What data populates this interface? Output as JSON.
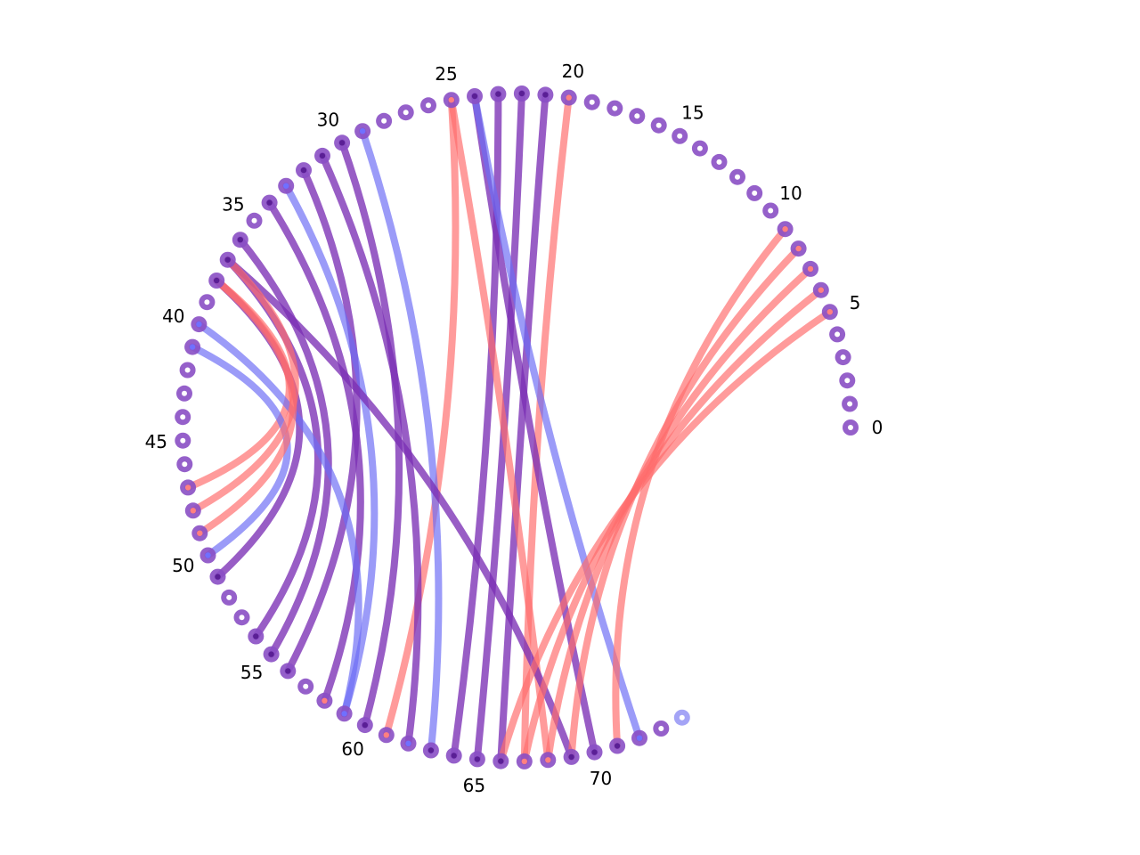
{
  "diagram": {
    "type": "arc-diagram",
    "node_count": 75,
    "tick_labels": [
      "0",
      "5",
      "10",
      "15",
      "20",
      "25",
      "30",
      "35",
      "40",
      "45",
      "50",
      "55",
      "60",
      "65",
      "70"
    ],
    "tick_step": 5,
    "colors": {
      "red": "#ff6b6b",
      "blue": "#6b6bf5",
      "purple": "#7b2fb5",
      "node_ring": "#8a4fc4",
      "node_center": "#ffffff",
      "last_node_ring": "#9a9af5"
    },
    "node_marks": {
      "red": [
        5,
        6,
        7,
        8,
        9,
        20,
        25,
        47,
        48,
        49,
        58,
        61,
        67,
        68
      ],
      "blue": [
        29,
        33,
        40,
        41,
        50,
        59,
        62,
        72
      ],
      "purple": [
        21,
        22,
        23,
        24,
        30,
        31,
        32,
        34,
        36,
        37,
        38,
        51,
        54,
        55,
        56,
        60,
        63,
        64,
        65,
        66,
        69,
        70,
        71
      ],
      "faded_last": [
        74
      ]
    },
    "chords": [
      {
        "from": 20,
        "to": 67,
        "color": "red"
      },
      {
        "from": 21,
        "to": 66,
        "color": "purple"
      },
      {
        "from": 22,
        "to": 65,
        "color": "purple"
      },
      {
        "from": 23,
        "to": 64,
        "color": "purple"
      },
      {
        "from": 24,
        "to": 70,
        "color": "purple"
      },
      {
        "from": 25,
        "to": 68,
        "color": "red"
      },
      {
        "from": 25,
        "to": 61,
        "color": "red"
      },
      {
        "from": 29,
        "to": 63,
        "color": "blue"
      },
      {
        "from": 30,
        "to": 60,
        "color": "purple"
      },
      {
        "from": 31,
        "to": 62,
        "color": "purple"
      },
      {
        "from": 32,
        "to": 56,
        "color": "purple"
      },
      {
        "from": 34,
        "to": 58,
        "color": "purple"
      },
      {
        "from": 33,
        "to": 59,
        "color": "blue"
      },
      {
        "from": 36,
        "to": 55,
        "color": "purple"
      },
      {
        "from": 37,
        "to": 69,
        "color": "purple"
      },
      {
        "from": 37,
        "to": 54,
        "color": "purple"
      },
      {
        "from": 38,
        "to": 51,
        "color": "purple"
      },
      {
        "from": 38,
        "to": 47,
        "color": "red"
      },
      {
        "from": 40,
        "to": 59,
        "color": "blue"
      },
      {
        "from": 41,
        "to": 50,
        "color": "blue"
      },
      {
        "from": 24,
        "to": 72,
        "color": "blue"
      },
      {
        "from": 9,
        "to": 71,
        "color": "red"
      },
      {
        "from": 8,
        "to": 69,
        "color": "red"
      },
      {
        "from": 7,
        "to": 68,
        "color": "red"
      },
      {
        "from": 6,
        "to": 67,
        "color": "red"
      },
      {
        "from": 5,
        "to": 66,
        "color": "red"
      },
      {
        "from": 49,
        "to": 38,
        "color": "red"
      },
      {
        "from": 48,
        "to": 37,
        "color": "red"
      }
    ]
  }
}
